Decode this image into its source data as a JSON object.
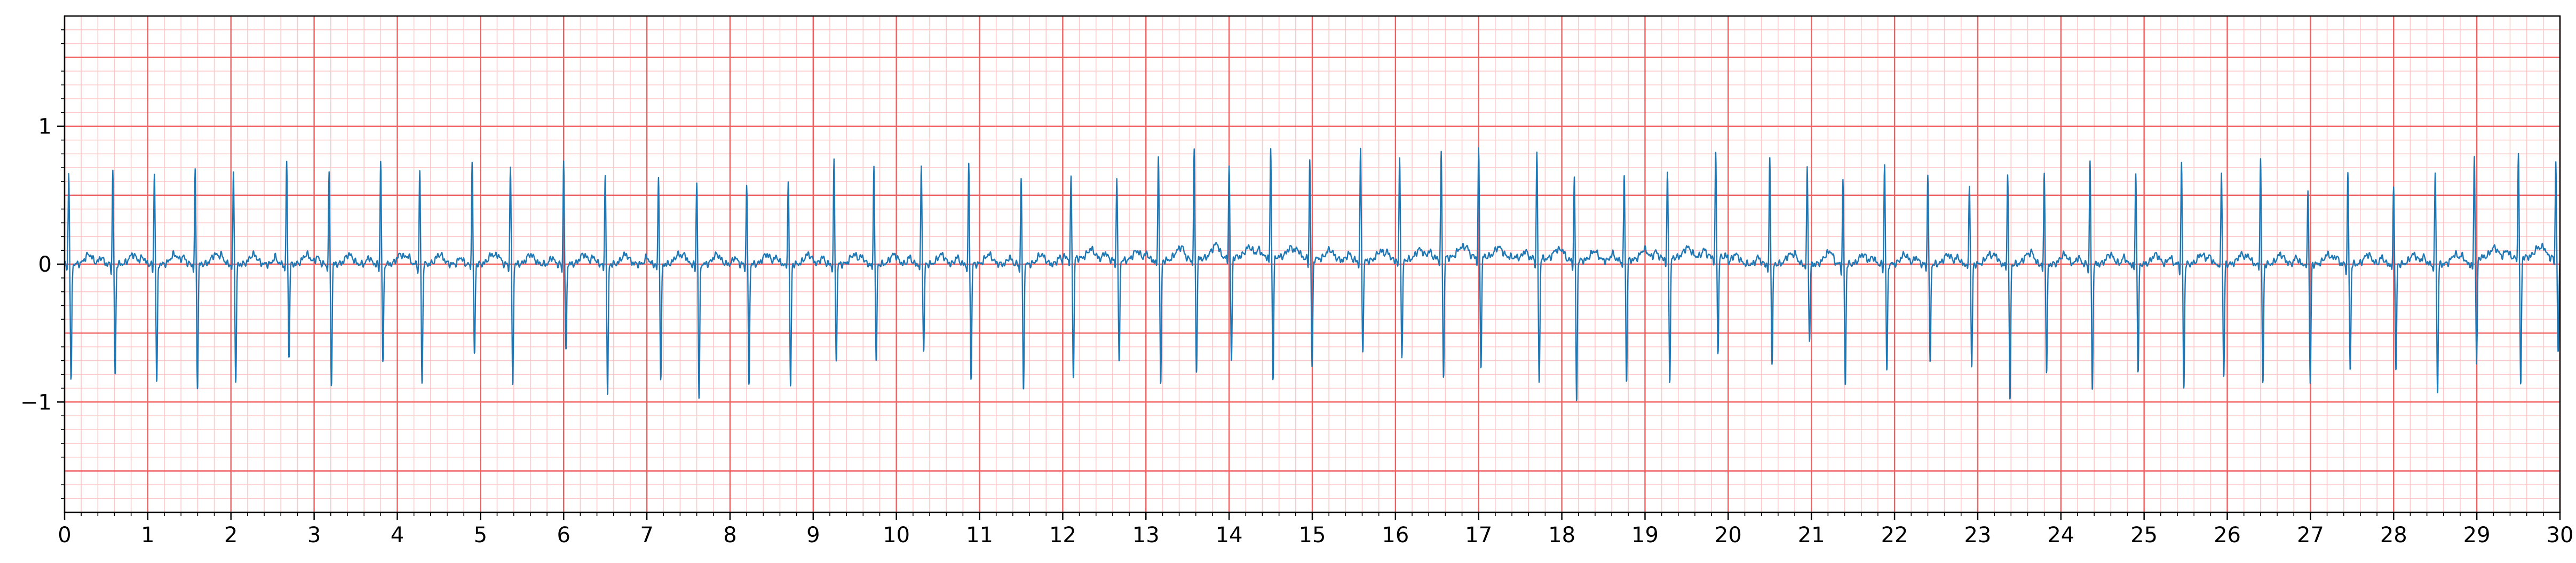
{
  "chart_data": {
    "type": "line",
    "title": "",
    "xlabel": "",
    "ylabel": "",
    "xlim": [
      0,
      30
    ],
    "ylim": [
      -1.8,
      1.8
    ],
    "grid": true,
    "grid_major_color": "#f06060",
    "grid_minor_color": "#ffc8c8",
    "line_color": "#1f77b4",
    "x_ticks": [
      0,
      1,
      2,
      3,
      4,
      5,
      6,
      7,
      8,
      9,
      10,
      11,
      12,
      13,
      14,
      15,
      16,
      17,
      18,
      19,
      20,
      21,
      22,
      23,
      24,
      25,
      26,
      27,
      28,
      29,
      30
    ],
    "x_tick_labels": [
      "0",
      "1",
      "2",
      "3",
      "4",
      "5",
      "6",
      "7",
      "8",
      "9",
      "10",
      "11",
      "12",
      "13",
      "14",
      "15",
      "16",
      "17",
      "18",
      "19",
      "20",
      "21",
      "22",
      "23",
      "24",
      "25",
      "26",
      "27",
      "28",
      "29",
      "30"
    ],
    "y_ticks": [
      -1,
      0,
      1
    ],
    "y_tick_labels": [
      "−1",
      "0",
      "1"
    ],
    "series": [
      {
        "beat_times": [
          0.05,
          0.58,
          1.08,
          1.57,
          2.03,
          2.67,
          3.18,
          3.8,
          4.27,
          4.9,
          5.36,
          6.0,
          6.5,
          7.14,
          7.6,
          8.2,
          8.7,
          9.25,
          9.73,
          10.3,
          10.87,
          11.5,
          12.1,
          12.65,
          13.15,
          13.58,
          14.0,
          14.5,
          14.97,
          15.58,
          16.05,
          16.55,
          17.0,
          17.7,
          18.15,
          18.75,
          19.27,
          19.85,
          20.5,
          20.95,
          21.38,
          21.88,
          22.4,
          22.9,
          23.36,
          23.8,
          24.35,
          24.9,
          25.45,
          25.93,
          26.4,
          26.97,
          27.45,
          28.0,
          28.5,
          28.97,
          29.5,
          29.95
        ],
        "r_peaks": [
          0.72,
          0.72,
          0.71,
          0.72,
          0.71,
          0.8,
          0.7,
          0.8,
          0.72,
          0.8,
          0.77,
          0.8,
          0.71,
          0.67,
          0.65,
          0.64,
          0.67,
          0.79,
          0.78,
          0.76,
          0.76,
          0.67,
          0.63,
          0.66,
          0.83,
          0.83,
          0.72,
          0.84,
          0.77,
          0.85,
          0.79,
          0.8,
          0.82,
          0.8,
          0.65,
          0.67,
          0.66,
          0.8,
          0.82,
          0.75,
          0.65,
          0.78,
          0.72,
          0.64,
          0.72,
          0.7,
          0.8,
          0.72,
          0.78,
          0.72,
          0.82,
          0.6,
          0.7,
          0.63,
          0.72,
          0.85,
          0.82,
          0.75
        ],
        "s_troughs": [
          -0.87,
          -0.82,
          -0.87,
          -0.9,
          -0.85,
          -0.67,
          -0.88,
          -0.72,
          -0.88,
          -0.67,
          -0.88,
          -0.65,
          -0.97,
          -0.85,
          -0.98,
          -0.88,
          -0.9,
          -0.7,
          -0.72,
          -0.65,
          -0.85,
          -0.92,
          -0.88,
          -0.75,
          -0.9,
          -0.82,
          -0.77,
          -0.89,
          -0.8,
          -0.65,
          -0.72,
          -0.88,
          -0.8,
          -0.92,
          -1.02,
          -0.88,
          -0.9,
          -0.7,
          -0.72,
          -0.55,
          -0.88,
          -0.78,
          -0.72,
          -0.75,
          -1.0,
          -0.8,
          -0.93,
          -0.78,
          -0.9,
          -0.83,
          -0.88,
          -0.88,
          -0.78,
          -0.78,
          -0.93,
          -0.72,
          -0.95,
          -0.72
        ]
      }
    ]
  }
}
